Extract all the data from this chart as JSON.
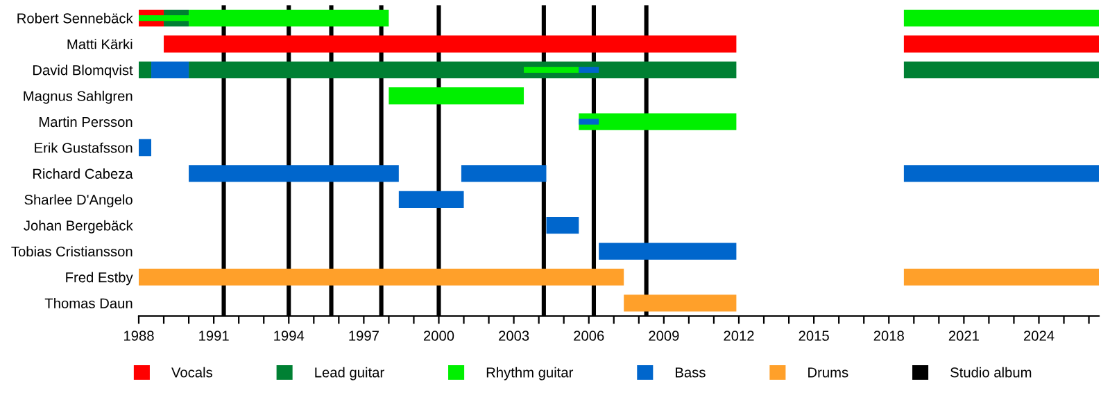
{
  "chart_data": {
    "type": "bar",
    "orientation": "horizontal",
    "categories": [
      "Robert Sennebäck",
      "Matti Kärki",
      "David Blomqvist",
      "Magnus Sahlgren",
      "Martin Persson",
      "Erik Gustafsson",
      "Richard Cabeza",
      "Sharlee D'Angelo",
      "Johan Bergebäck",
      "Tobias Cristiansson",
      "Fred Estby",
      "Thomas Daun"
    ],
    "series": [
      {
        "name": "Vocals",
        "color": "#ff0000",
        "base": [
          1988.0,
          1989.0,
          null,
          null,
          null,
          null,
          null,
          null,
          null,
          null,
          null,
          null
        ],
        "values": [
          1.0,
          22.9,
          null,
          null,
          null,
          null,
          null,
          null,
          null,
          null,
          null,
          null
        ]
      },
      {
        "color": "#ff0000",
        "base": [
          null,
          2018.6,
          null,
          null,
          null,
          null,
          null,
          null,
          null,
          null,
          null,
          null
        ],
        "values": [
          null,
          7.8,
          null,
          null,
          null,
          null,
          null,
          null,
          null,
          null,
          null,
          null
        ]
      },
      {
        "name": "Lead guitar",
        "color": "#008033",
        "base": [
          1989.0,
          null,
          1988.0,
          null,
          null,
          null,
          null,
          null,
          null,
          null,
          null,
          null
        ],
        "values": [
          1.0,
          null,
          0.5,
          null,
          null,
          null,
          null,
          null,
          null,
          null,
          null,
          null
        ]
      },
      {
        "color": "#008033",
        "base": [
          null,
          null,
          1990.0,
          null,
          null,
          null,
          null,
          null,
          null,
          null,
          null,
          null
        ],
        "values": [
          null,
          null,
          21.9,
          null,
          null,
          null,
          null,
          null,
          null,
          null,
          null,
          null
        ]
      },
      {
        "color": "#008033",
        "base": [
          null,
          null,
          2018.6,
          null,
          null,
          null,
          null,
          null,
          null,
          null,
          null,
          null
        ],
        "values": [
          null,
          null,
          7.8,
          null,
          null,
          null,
          null,
          null,
          null,
          null,
          null,
          null
        ]
      },
      {
        "name": "Rhythm guitar",
        "color": "#00f000",
        "base": [
          1990.0,
          null,
          null,
          1998.0,
          2005.6,
          null,
          null,
          null,
          null,
          null,
          null,
          null
        ],
        "values": [
          8.0,
          null,
          null,
          5.4,
          6.3,
          null,
          null,
          null,
          null,
          null,
          null,
          null
        ]
      },
      {
        "color": "#00f000",
        "base": [
          2018.6,
          null,
          null,
          null,
          null,
          null,
          null,
          null,
          null,
          null,
          null,
          null
        ],
        "values": [
          7.8,
          null,
          null,
          null,
          null,
          null,
          null,
          null,
          null,
          null,
          null,
          null
        ]
      },
      {
        "name": "Bass",
        "color": "#0066cc",
        "base": [
          null,
          null,
          1988.5,
          null,
          null,
          1988.0,
          1990.0,
          1998.4,
          2004.3,
          2006.4,
          null,
          null
        ],
        "values": [
          null,
          null,
          1.5,
          null,
          null,
          0.5,
          8.4,
          2.6,
          1.3,
          5.5,
          null,
          null
        ]
      },
      {
        "color": "#0066cc",
        "base": [
          null,
          null,
          null,
          null,
          null,
          null,
          2000.9,
          null,
          null,
          null,
          null,
          null
        ],
        "values": [
          null,
          null,
          null,
          null,
          null,
          null,
          3.4,
          null,
          null,
          null,
          null,
          null
        ]
      },
      {
        "color": "#0066cc",
        "base": [
          null,
          null,
          null,
          null,
          null,
          null,
          2018.6,
          null,
          null,
          null,
          null,
          null
        ],
        "values": [
          null,
          null,
          null,
          null,
          null,
          null,
          7.8,
          null,
          null,
          null,
          null,
          null
        ]
      },
      {
        "name": "Drums",
        "color": "#ffa02a",
        "base": [
          null,
          null,
          null,
          null,
          null,
          null,
          null,
          null,
          null,
          null,
          1988.0,
          2007.4
        ],
        "values": [
          null,
          null,
          null,
          null,
          null,
          null,
          null,
          null,
          null,
          null,
          19.4,
          4.5
        ]
      },
      {
        "color": "#ffa02a",
        "base": [
          null,
          null,
          null,
          null,
          null,
          null,
          null,
          null,
          null,
          null,
          2018.6,
          null
        ],
        "values": [
          null,
          null,
          null,
          null,
          null,
          null,
          null,
          null,
          null,
          null,
          7.8,
          null
        ]
      },
      {
        "color": "#00f000",
        "base": [
          1988.0,
          null,
          2003.4,
          null,
          null,
          null,
          null,
          null,
          null,
          null,
          null,
          null
        ],
        "values": [
          2.0,
          null,
          2.2,
          null,
          null,
          null,
          null,
          null,
          null,
          null,
          null,
          null
        ]
      },
      {
        "color": "#0066cc",
        "base": [
          null,
          null,
          2005.6,
          null,
          2005.6,
          null,
          null,
          null,
          null,
          null,
          null,
          null
        ],
        "values": [
          null,
          null,
          0.8,
          null,
          0.8,
          null,
          null,
          null,
          null,
          null,
          null,
          null
        ]
      }
    ],
    "ref_lines": [
      {
        "axis": "x",
        "value": 1991.4,
        "label": "Studio album",
        "color": "#000000"
      },
      {
        "axis": "x",
        "value": 1994.0,
        "color": "#000000"
      },
      {
        "axis": "x",
        "value": 1995.7,
        "color": "#000000"
      },
      {
        "axis": "x",
        "value": 1997.7,
        "color": "#000000"
      },
      {
        "axis": "x",
        "value": 2000.0,
        "color": "#000000"
      },
      {
        "axis": "x",
        "value": 2004.2,
        "color": "#000000"
      },
      {
        "axis": "x",
        "value": 2006.2,
        "color": "#000000"
      },
      {
        "axis": "x",
        "value": 2008.3,
        "color": "#000000"
      }
    ],
    "xlim": [
      1988,
      2026.4
    ],
    "xticks": [
      1988,
      {
        "value": 1989,
        "label": null
      },
      {
        "value": 1990,
        "label": null
      },
      1991,
      {
        "value": 1992,
        "label": null
      },
      {
        "value": 1993,
        "label": null
      },
      1994,
      {
        "value": 1995,
        "label": null
      },
      {
        "value": 1996,
        "label": null
      },
      1997,
      {
        "value": 1998,
        "label": null
      },
      {
        "value": 1999,
        "label": null
      },
      2000,
      {
        "value": 2001,
        "label": null
      },
      {
        "value": 2002,
        "label": null
      },
      2003,
      {
        "value": 2004,
        "label": null
      },
      {
        "value": 2005,
        "label": null
      },
      2006,
      {
        "value": 2007,
        "label": null
      },
      {
        "value": 2008,
        "label": null
      },
      2009,
      {
        "value": 2010,
        "label": null
      },
      {
        "value": 2011,
        "label": null
      },
      2012,
      {
        "value": 2013,
        "label": null
      },
      {
        "value": 2014,
        "label": null
      },
      2015,
      {
        "value": 2016,
        "label": null
      },
      {
        "value": 2017,
        "label": null
      },
      2018,
      {
        "value": 2019,
        "label": null
      },
      {
        "value": 2020,
        "label": null
      },
      2021,
      {
        "value": 2022,
        "label": null
      },
      {
        "value": 2023,
        "label": null
      },
      2024,
      {
        "value": 2025,
        "label": null
      },
      {
        "value": 2026,
        "label": null
      }
    ],
    "grid": false,
    "legend": "bottom"
  }
}
